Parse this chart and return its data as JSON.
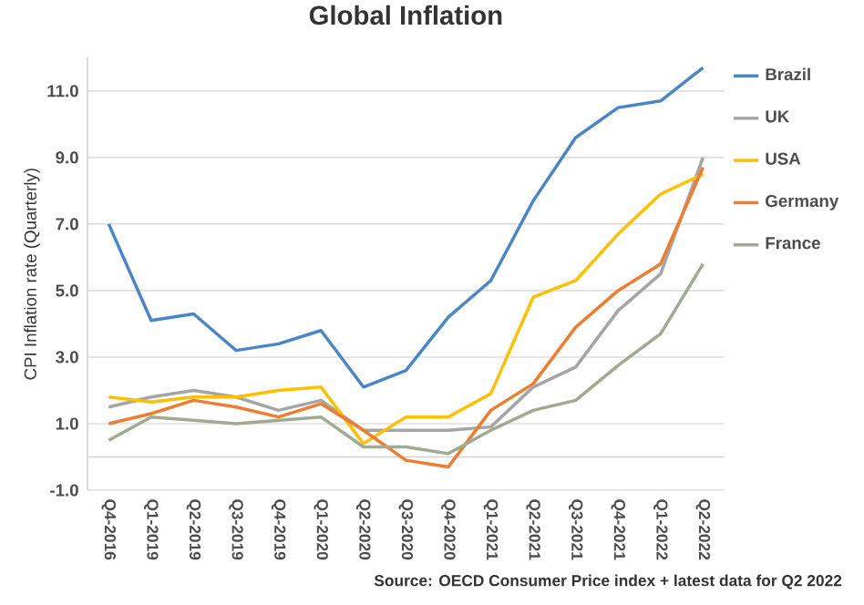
{
  "chart_data": {
    "type": "line",
    "title": "Global Inflation",
    "ylabel": "CPI Inflation rate (Quarterly)",
    "categories": [
      "Q4-2016",
      "Q1-2019",
      "Q2-2019",
      "Q3-2019",
      "Q4-2019",
      "Q1-2020",
      "Q2-2020",
      "Q3-2020",
      "Q4-2020",
      "Q1-2021",
      "Q2-2021",
      "Q3-2021",
      "Q4-2021",
      "Q1-2022",
      "Q2-2022"
    ],
    "series": [
      {
        "name": "Brazil",
        "color": "#4a86c5",
        "values": [
          7.0,
          4.1,
          4.3,
          3.2,
          3.4,
          3.8,
          2.1,
          2.6,
          4.2,
          5.3,
          7.7,
          9.6,
          10.5,
          10.7,
          11.7
        ]
      },
      {
        "name": "UK",
        "color": "#a5a5a5",
        "values": [
          1.5,
          1.8,
          2.0,
          1.8,
          1.4,
          1.7,
          0.8,
          0.8,
          0.8,
          0.9,
          2.1,
          2.7,
          4.4,
          5.5,
          9.0
        ]
      },
      {
        "name": "USA",
        "color": "#ffc000",
        "values": [
          1.8,
          1.65,
          1.8,
          1.8,
          2.0,
          2.1,
          0.4,
          1.2,
          1.2,
          1.9,
          4.8,
          5.3,
          6.7,
          7.9,
          8.5
        ]
      },
      {
        "name": "Germany",
        "color": "#ed7d31",
        "values": [
          1.0,
          1.3,
          1.7,
          1.5,
          1.2,
          1.6,
          0.8,
          -0.1,
          -0.3,
          1.4,
          2.2,
          3.9,
          5.0,
          5.8,
          8.7
        ]
      },
      {
        "name": "France",
        "color": "#9eab90",
        "values": [
          0.5,
          1.2,
          1.1,
          1.0,
          1.1,
          1.2,
          0.3,
          0.3,
          0.1,
          0.8,
          1.4,
          1.7,
          2.75,
          3.7,
          5.8
        ]
      }
    ],
    "ylim": [
      -1,
      12
    ],
    "yticks": [
      {
        "value": -1,
        "label": "-1.0"
      },
      {
        "value": 1,
        "label": "1.0"
      },
      {
        "value": 3,
        "label": "3.0"
      },
      {
        "value": 5,
        "label": "5.0"
      },
      {
        "value": 7,
        "label": "7.0"
      },
      {
        "value": 9,
        "label": "9.0"
      },
      {
        "value": 11,
        "label": "11.0"
      }
    ],
    "grid": "y",
    "legend": "right",
    "marker": "none",
    "line_style": "solid",
    "annotations": [
      "Source: OECD Consumer Price index + latest data for Q2 2022"
    ]
  }
}
